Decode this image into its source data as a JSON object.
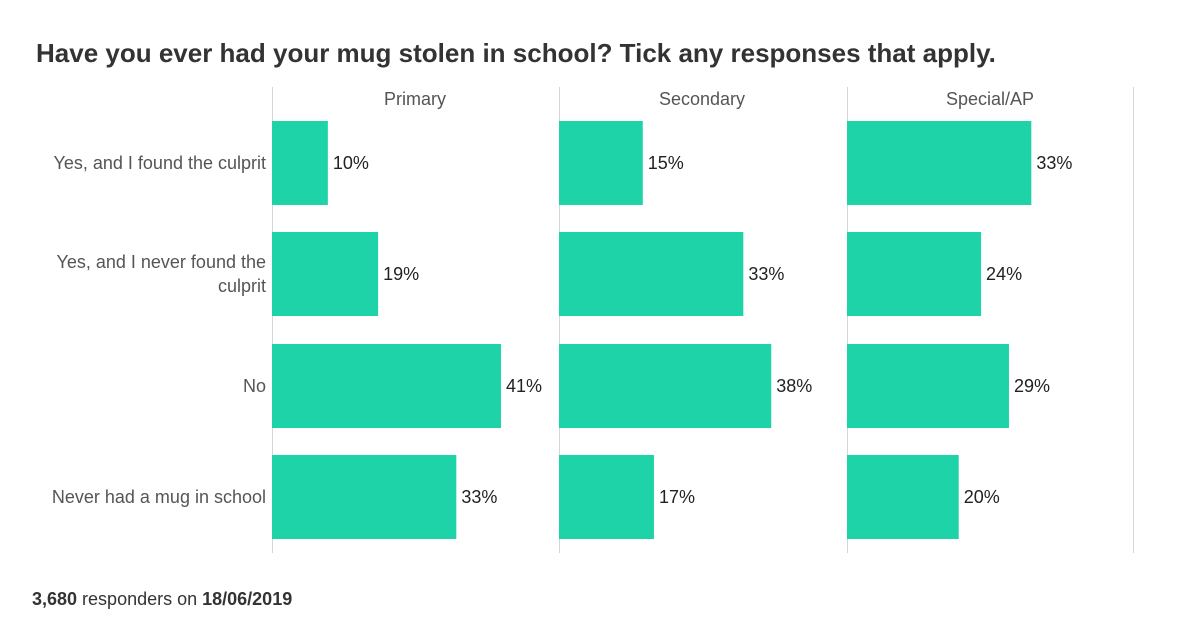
{
  "chart_data": {
    "type": "bar",
    "orientation": "horizontal",
    "title": "Have you ever had your mug stolen in school? Tick any responses that apply.",
    "categories": [
      "Yes, and I found the culprit",
      "Yes, and I never found the culprit",
      "No",
      "Never had a mug in school"
    ],
    "category_lines": [
      [
        "Yes, and I found the culprit"
      ],
      [
        "Yes, and I never found the",
        "culprit"
      ],
      [
        "No"
      ],
      [
        "Never had a mug in school"
      ]
    ],
    "value_suffix": "%",
    "xlim": [
      0,
      50
    ],
    "bar_color": "#1ed3a7",
    "panels": [
      {
        "name": "Primary",
        "values": [
          10,
          19,
          41,
          33
        ]
      },
      {
        "name": "Secondary",
        "values": [
          15,
          33,
          38,
          17
        ]
      },
      {
        "name": "Special/AP",
        "values": [
          33,
          24,
          29,
          20
        ]
      }
    ]
  },
  "footer": {
    "count": "3,680",
    "middle": " responders on ",
    "date": "18/06/2019"
  }
}
